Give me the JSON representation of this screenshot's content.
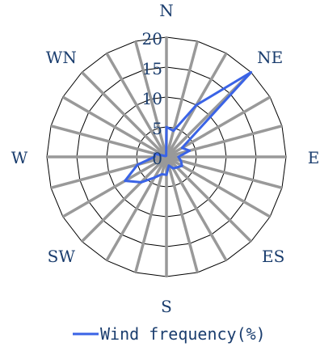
{
  "chart_data": {
    "type": "radar",
    "directions": [
      "N",
      "",
      "",
      "NE",
      "",
      "",
      "E",
      "",
      "",
      "ES",
      "",
      "",
      "S",
      "",
      "",
      "SW",
      "",
      "",
      "W",
      "",
      "",
      "WN",
      "",
      ""
    ],
    "rlim": [
      0,
      20
    ],
    "ticks": [
      "0",
      "5",
      "10",
      "15",
      "20"
    ],
    "series": [
      {
        "name": "Wind frequency(%)",
        "color": "#3a63e6",
        "values": [
          5,
          4.5,
          10,
          20,
          3,
          4,
          2,
          2.5,
          3,
          2.5,
          2.2,
          1.5,
          3,
          3,
          4,
          6,
          8,
          5,
          2,
          2,
          0.3,
          0.2,
          0.2,
          0.2
        ]
      }
    ],
    "grid": true,
    "legend_position": "bottom"
  },
  "colors": {
    "grid": "#000000",
    "spoke": "#999999",
    "text": "#1a3d6e"
  }
}
